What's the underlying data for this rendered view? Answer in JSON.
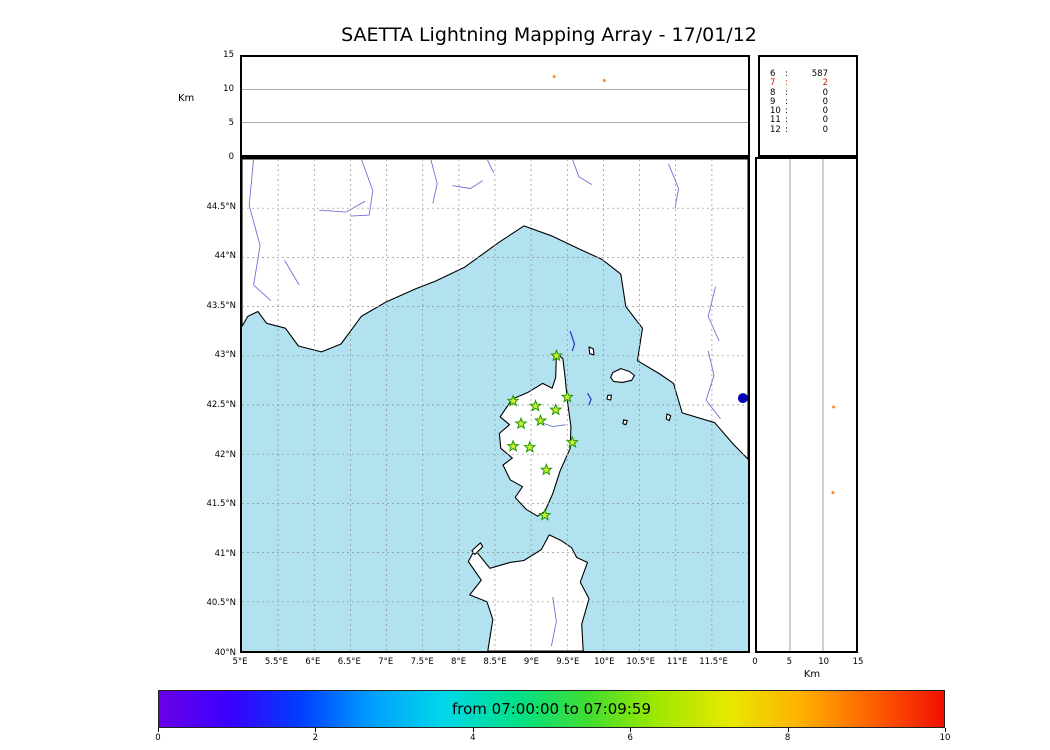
{
  "title": "SAETTA Lightning Mapping Array - 17/01/12",
  "colors": {
    "sea": "#b2e2f0",
    "land": "#ffffff",
    "coast": "#000000",
    "river": "#7070d8",
    "grid": "#909090",
    "station_fill": "#ccee33",
    "station_stroke": "#1f9900",
    "flash_track": "#2233cc",
    "flash_dot": "#0000bb",
    "point_late": "#ff8822",
    "highlight": "#cc2200"
  },
  "chart_data": {
    "type": "scatter",
    "title": "SAETTA Lightning Mapping Array - 17/01/12",
    "time_window": "from 07:00:00 to 07:09:59",
    "alt_time_panel": {
      "ylabel": "Km",
      "ylim": [
        0,
        15
      ],
      "yticks": [
        0,
        5,
        10,
        15
      ],
      "points": [
        {
          "x": 0.617,
          "alt": 12.0,
          "color": "#ff8822"
        },
        {
          "x": 0.716,
          "alt": 11.4,
          "color": "#ff8822"
        }
      ]
    },
    "stations_histogram": {
      "rows": [
        {
          "stations": "6",
          "count": "587",
          "highlight": false
        },
        {
          "stations": "7",
          "count": "2",
          "highlight": true
        },
        {
          "stations": "8",
          "count": "0",
          "highlight": false
        },
        {
          "stations": "9",
          "count": "0",
          "highlight": false
        },
        {
          "stations": "10",
          "count": "0",
          "highlight": false
        },
        {
          "stations": "11",
          "count": "0",
          "highlight": false
        },
        {
          "stations": "12",
          "count": "0",
          "highlight": false
        }
      ]
    },
    "map_panel": {
      "lon_range": [
        5,
        12
      ],
      "lat_range": [
        40,
        45
      ],
      "lon_tick_step": 0.5,
      "lat_tick_step": 0.5,
      "lon_ticks": [
        "5°E",
        "5.5°E",
        "6°E",
        "6.5°E",
        "7°E",
        "7.5°E",
        "8°E",
        "8.5°E",
        "9°E",
        "9.5°E",
        "10°E",
        "10.5°E",
        "11°E",
        "11.5°E"
      ],
      "lat_ticks": [
        "40°N",
        "40.5°N",
        "41°N",
        "41.5°N",
        "42°N",
        "42.5°N",
        "43°N",
        "43.5°N",
        "44°N",
        "44.5°N"
      ],
      "stations": [
        [
          9.35,
          43.0
        ],
        [
          8.75,
          42.54
        ],
        [
          9.06,
          42.49
        ],
        [
          9.34,
          42.45
        ],
        [
          9.5,
          42.58
        ],
        [
          8.86,
          42.31
        ],
        [
          9.13,
          42.34
        ],
        [
          8.75,
          42.08
        ],
        [
          8.98,
          42.07
        ],
        [
          9.57,
          42.12
        ],
        [
          9.21,
          41.84
        ],
        [
          9.19,
          41.38
        ]
      ],
      "flash_tracks": [
        {
          "points": [
            [
              9.54,
              43.25
            ],
            [
              9.6,
              43.12
            ],
            [
              9.57,
              43.05
            ]
          ]
        },
        {
          "points": [
            [
              9.78,
              42.62
            ],
            [
              9.83,
              42.56
            ],
            [
              9.8,
              42.5
            ]
          ]
        }
      ],
      "flash_dot": {
        "lon": 11.93,
        "lat": 42.57
      },
      "land_polygons": {
        "mainland": [
          [
            5.0,
            43.3
          ],
          [
            5.08,
            43.4
          ],
          [
            5.22,
            43.45
          ],
          [
            5.34,
            43.33
          ],
          [
            5.6,
            43.28
          ],
          [
            5.78,
            43.1
          ],
          [
            6.1,
            43.04
          ],
          [
            6.37,
            43.12
          ],
          [
            6.65,
            43.4
          ],
          [
            7.0,
            43.55
          ],
          [
            7.4,
            43.68
          ],
          [
            7.68,
            43.76
          ],
          [
            8.08,
            43.9
          ],
          [
            8.55,
            44.15
          ],
          [
            8.9,
            44.32
          ],
          [
            9.28,
            44.22
          ],
          [
            9.68,
            44.08
          ],
          [
            9.98,
            43.98
          ],
          [
            10.24,
            43.83
          ],
          [
            10.31,
            43.5
          ],
          [
            10.54,
            43.28
          ],
          [
            10.47,
            42.95
          ],
          [
            10.77,
            42.82
          ],
          [
            10.97,
            42.72
          ],
          [
            11.09,
            42.42
          ],
          [
            11.54,
            42.32
          ],
          [
            11.8,
            42.1
          ],
          [
            12.0,
            41.95
          ],
          [
            12.0,
            45.0
          ],
          [
            5.0,
            45.0
          ]
        ],
        "corsica": [
          [
            9.35,
            43.03
          ],
          [
            9.44,
            42.97
          ],
          [
            9.47,
            42.78
          ],
          [
            9.5,
            42.55
          ],
          [
            9.55,
            42.28
          ],
          [
            9.54,
            42.06
          ],
          [
            9.4,
            41.83
          ],
          [
            9.3,
            41.6
          ],
          [
            9.19,
            41.42
          ],
          [
            9.09,
            41.37
          ],
          [
            8.93,
            41.44
          ],
          [
            8.78,
            41.56
          ],
          [
            8.88,
            41.67
          ],
          [
            8.71,
            41.74
          ],
          [
            8.61,
            41.89
          ],
          [
            8.74,
            41.96
          ],
          [
            8.58,
            42.06
          ],
          [
            8.56,
            42.21
          ],
          [
            8.7,
            42.3
          ],
          [
            8.57,
            42.38
          ],
          [
            8.74,
            42.56
          ],
          [
            8.96,
            42.63
          ],
          [
            9.16,
            42.72
          ],
          [
            9.29,
            42.67
          ],
          [
            9.34,
            42.78
          ]
        ],
        "sardinia": [
          [
            8.4,
            40.0
          ],
          [
            8.47,
            40.32
          ],
          [
            8.39,
            40.5
          ],
          [
            8.15,
            40.57
          ],
          [
            8.31,
            40.72
          ],
          [
            8.13,
            40.91
          ],
          [
            8.22,
            41.03
          ],
          [
            8.43,
            40.84
          ],
          [
            8.71,
            40.9
          ],
          [
            8.9,
            40.92
          ],
          [
            9.14,
            41.03
          ],
          [
            9.25,
            41.18
          ],
          [
            9.42,
            41.12
          ],
          [
            9.56,
            41.05
          ],
          [
            9.63,
            40.95
          ],
          [
            9.78,
            40.9
          ],
          [
            9.68,
            40.7
          ],
          [
            9.8,
            40.53
          ],
          [
            9.7,
            40.27
          ],
          [
            9.72,
            40.0
          ]
        ],
        "elba": [
          [
            10.1,
            42.78
          ],
          [
            10.13,
            42.83
          ],
          [
            10.24,
            42.87
          ],
          [
            10.36,
            42.84
          ],
          [
            10.43,
            42.8
          ],
          [
            10.39,
            42.75
          ],
          [
            10.26,
            42.73
          ],
          [
            10.14,
            42.74
          ]
        ],
        "capraia": [
          [
            9.8,
            43.09
          ],
          [
            9.86,
            43.07
          ],
          [
            9.87,
            43.01
          ],
          [
            9.81,
            43.02
          ]
        ],
        "pianosa": [
          [
            10.06,
            42.6
          ],
          [
            10.11,
            42.6
          ],
          [
            10.1,
            42.55
          ],
          [
            10.05,
            42.56
          ]
        ],
        "montecristo": [
          [
            10.28,
            42.35
          ],
          [
            10.33,
            42.34
          ],
          [
            10.31,
            42.3
          ],
          [
            10.27,
            42.31
          ]
        ],
        "giglio": [
          [
            10.88,
            42.41
          ],
          [
            10.93,
            42.39
          ],
          [
            10.91,
            42.34
          ],
          [
            10.87,
            42.36
          ]
        ],
        "asinara": [
          [
            8.18,
            41.02
          ],
          [
            8.3,
            41.1
          ],
          [
            8.33,
            41.06
          ],
          [
            8.22,
            40.98
          ]
        ]
      },
      "rivers": [
        [
          [
            5.16,
            45.0
          ],
          [
            5.1,
            44.53
          ],
          [
            5.25,
            44.12
          ],
          [
            5.16,
            43.72
          ],
          [
            5.4,
            43.56
          ]
        ],
        [
          [
            6.07,
            44.48
          ],
          [
            6.44,
            44.46
          ],
          [
            6.7,
            44.57
          ]
        ],
        [
          [
            6.65,
            45.0
          ],
          [
            6.81,
            44.68
          ],
          [
            6.76,
            44.43
          ],
          [
            6.5,
            44.42
          ]
        ],
        [
          [
            7.61,
            45.0
          ],
          [
            7.7,
            44.75
          ],
          [
            7.64,
            44.55
          ]
        ],
        [
          [
            7.91,
            44.73
          ],
          [
            8.16,
            44.7
          ],
          [
            8.33,
            44.78
          ]
        ],
        [
          [
            8.39,
            45.0
          ],
          [
            8.48,
            44.86
          ]
        ],
        [
          [
            9.57,
            45.0
          ],
          [
            9.66,
            44.82
          ],
          [
            9.84,
            44.74
          ]
        ],
        [
          [
            10.9,
            44.95
          ],
          [
            11.04,
            44.7
          ],
          [
            10.99,
            44.5
          ]
        ],
        [
          [
            11.45,
            43.05
          ],
          [
            11.53,
            42.8
          ],
          [
            11.42,
            42.55
          ],
          [
            11.62,
            42.36
          ]
        ],
        [
          [
            11.55,
            43.7
          ],
          [
            11.45,
            43.4
          ],
          [
            11.6,
            43.15
          ]
        ],
        [
          [
            5.59,
            43.97
          ],
          [
            5.79,
            43.72
          ]
        ],
        [
          [
            9.1,
            42.33
          ],
          [
            9.3,
            42.28
          ],
          [
            9.48,
            42.3
          ]
        ],
        [
          [
            9.3,
            40.55
          ],
          [
            9.35,
            40.3
          ],
          [
            9.28,
            40.05
          ]
        ]
      ]
    },
    "alt_lat_panel": {
      "xlabel": "Km",
      "xlim": [
        0,
        15
      ],
      "xticks": [
        "0",
        "5",
        "10",
        "15"
      ],
      "points": [
        {
          "alt": 11.6,
          "lat": 42.48,
          "color": "#ff8822"
        },
        {
          "alt": 11.5,
          "lat": 41.61,
          "color": "#ff8822"
        }
      ]
    },
    "colorbar": {
      "label": "from 07:00:00 to 07:09:59",
      "ticks": [
        "0",
        "2",
        "4",
        "6",
        "8",
        "10"
      ],
      "gradient": [
        "#6a00e8",
        "#3a00ff",
        "#0040ff",
        "#00a0ff",
        "#00d8e8",
        "#00e08a",
        "#40dd30",
        "#a0e800",
        "#e8e800",
        "#ffb000",
        "#ff6000",
        "#f01000"
      ]
    }
  }
}
